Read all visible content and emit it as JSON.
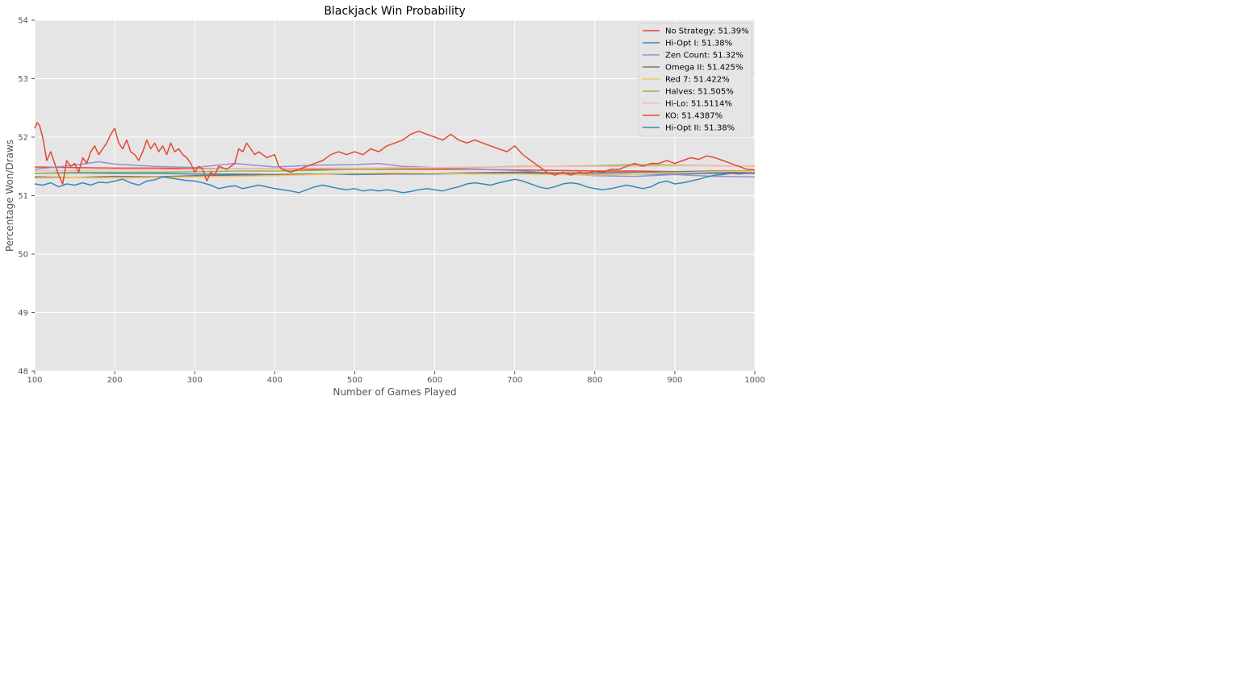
{
  "chart_data": {
    "type": "line",
    "title": "Blackjack Win Probability",
    "xlabel": "Number of Games Played",
    "ylabel": "Percentage Won/Draws",
    "xlim": [
      100,
      1000
    ],
    "ylim": [
      48,
      54
    ],
    "xticks": [
      100,
      200,
      300,
      400,
      500,
      600,
      700,
      800,
      900,
      1000
    ],
    "yticks": [
      48,
      49,
      50,
      51,
      52,
      53,
      54
    ],
    "grid": true,
    "legend_position": "top-right",
    "series": [
      {
        "name": "No Strategy: 51.39%",
        "color": "#e24a33",
        "x": [
          100,
          150,
          200,
          250,
          300,
          350,
          400,
          450,
          500,
          550,
          600,
          650,
          700,
          750,
          800,
          850,
          900,
          950,
          1000
        ],
        "values": [
          51.49,
          51.48,
          51.47,
          51.47,
          51.46,
          51.46,
          51.46,
          51.45,
          51.45,
          51.45,
          51.45,
          51.45,
          51.44,
          51.43,
          51.42,
          51.42,
          51.41,
          51.4,
          51.39
        ]
      },
      {
        "name": "Hi-Opt I: 51.38%",
        "color": "#348abd",
        "x": [
          100,
          150,
          200,
          250,
          300,
          350,
          400,
          450,
          500,
          550,
          600,
          650,
          700,
          750,
          800,
          850,
          900,
          950,
          1000
        ],
        "values": [
          51.38,
          51.39,
          51.38,
          51.38,
          51.37,
          51.37,
          51.36,
          51.37,
          51.36,
          51.37,
          51.37,
          51.38,
          51.38,
          51.37,
          51.36,
          51.37,
          51.37,
          51.38,
          51.38
        ]
      },
      {
        "name": "Zen Count: 51.32%",
        "color": "#988ed5",
        "x": [
          100,
          150,
          180,
          200,
          250,
          300,
          350,
          400,
          450,
          500,
          530,
          560,
          600,
          650,
          700,
          750,
          800,
          850,
          900,
          950,
          1000
        ],
        "values": [
          51.45,
          51.52,
          51.58,
          51.54,
          51.5,
          51.48,
          51.55,
          51.49,
          51.52,
          51.53,
          51.55,
          51.5,
          51.48,
          51.45,
          51.43,
          51.38,
          51.34,
          51.33,
          51.36,
          51.33,
          51.32
        ]
      },
      {
        "name": "Omega II: 51.425%",
        "color": "#777777",
        "x": [
          100,
          150,
          200,
          250,
          300,
          350,
          400,
          450,
          500,
          550,
          600,
          650,
          700,
          750,
          800,
          850,
          900,
          950,
          1000
        ],
        "values": [
          51.32,
          51.31,
          51.33,
          51.32,
          51.34,
          51.35,
          51.36,
          51.37,
          51.38,
          51.37,
          51.38,
          51.39,
          51.4,
          51.39,
          51.39,
          51.4,
          51.41,
          51.42,
          51.425
        ]
      },
      {
        "name": "Red 7: 51.422%",
        "color": "#fbc15e",
        "x": [
          100,
          150,
          200,
          250,
          300,
          350,
          400,
          450,
          500,
          550,
          600,
          650,
          700,
          750,
          800,
          850,
          900,
          950,
          1000
        ],
        "values": [
          51.3,
          51.31,
          51.3,
          51.31,
          51.32,
          51.33,
          51.34,
          51.36,
          51.38,
          51.39,
          51.38,
          51.37,
          51.37,
          51.36,
          51.35,
          51.37,
          51.39,
          51.41,
          51.422
        ]
      },
      {
        "name": "Halves: 51.505%",
        "color": "#8eba42",
        "x": [
          100,
          150,
          200,
          250,
          300,
          350,
          400,
          450,
          500,
          550,
          600,
          650,
          700,
          750,
          800,
          850,
          900,
          950,
          1000
        ],
        "values": [
          51.38,
          51.4,
          51.4,
          51.4,
          51.41,
          51.42,
          51.42,
          51.43,
          51.45,
          51.46,
          51.47,
          51.48,
          51.5,
          51.5,
          51.51,
          51.53,
          51.52,
          51.51,
          51.505
        ]
      },
      {
        "name": "Hi-Lo: 51.5114%",
        "color": "#ffb5b8",
        "x": [
          100,
          150,
          200,
          250,
          300,
          350,
          400,
          450,
          500,
          550,
          600,
          650,
          700,
          750,
          800,
          850,
          900,
          950,
          1000
        ],
        "values": [
          51.42,
          51.43,
          51.44,
          51.44,
          51.45,
          51.46,
          51.46,
          51.47,
          51.47,
          51.48,
          51.48,
          51.49,
          51.49,
          51.5,
          51.5,
          51.5,
          51.51,
          51.51,
          51.5114
        ]
      },
      {
        "name": "KO: 51.4387%",
        "color": "#e24a33",
        "x": [
          100,
          103,
          106,
          110,
          115,
          120,
          125,
          130,
          135,
          140,
          145,
          150,
          155,
          160,
          165,
          170,
          175,
          180,
          185,
          190,
          195,
          200,
          205,
          210,
          215,
          220,
          225,
          230,
          235,
          240,
          245,
          250,
          255,
          260,
          265,
          270,
          275,
          280,
          285,
          290,
          295,
          300,
          305,
          310,
          315,
          320,
          325,
          330,
          340,
          350,
          355,
          360,
          365,
          370,
          375,
          380,
          390,
          400,
          405,
          410,
          420,
          430,
          440,
          450,
          460,
          470,
          480,
          490,
          500,
          510,
          520,
          530,
          540,
          550,
          560,
          570,
          580,
          590,
          600,
          610,
          620,
          630,
          640,
          650,
          660,
          670,
          680,
          690,
          700,
          710,
          720,
          730,
          740,
          750,
          760,
          770,
          780,
          790,
          800,
          810,
          820,
          830,
          840,
          850,
          860,
          870,
          880,
          890,
          900,
          910,
          920,
          930,
          940,
          950,
          960,
          970,
          980,
          990,
          1000
        ],
        "values": [
          52.15,
          52.25,
          52.2,
          52.0,
          51.6,
          51.75,
          51.55,
          51.35,
          51.2,
          51.6,
          51.5,
          51.55,
          51.4,
          51.65,
          51.55,
          51.75,
          51.85,
          51.7,
          51.8,
          51.9,
          52.05,
          52.15,
          51.9,
          51.8,
          51.95,
          51.75,
          51.7,
          51.6,
          51.75,
          51.95,
          51.8,
          51.9,
          51.75,
          51.85,
          51.7,
          51.9,
          51.75,
          51.8,
          51.7,
          51.65,
          51.55,
          51.4,
          51.5,
          51.45,
          51.25,
          51.4,
          51.35,
          51.5,
          51.45,
          51.55,
          51.8,
          51.75,
          51.9,
          51.8,
          51.7,
          51.75,
          51.65,
          51.7,
          51.5,
          51.45,
          51.4,
          51.45,
          51.5,
          51.55,
          51.6,
          51.7,
          51.75,
          51.7,
          51.75,
          51.7,
          51.8,
          51.75,
          51.85,
          51.9,
          51.95,
          52.05,
          52.1,
          52.05,
          52.0,
          51.95,
          52.05,
          51.95,
          51.9,
          51.95,
          51.9,
          51.85,
          51.8,
          51.75,
          51.85,
          51.7,
          51.6,
          51.5,
          51.4,
          51.35,
          51.4,
          51.35,
          51.4,
          51.38,
          51.42,
          51.4,
          51.45,
          51.45,
          51.5,
          51.55,
          51.5,
          51.55,
          51.55,
          51.6,
          51.55,
          51.6,
          51.65,
          51.62,
          51.68,
          51.65,
          51.6,
          51.55,
          51.5,
          51.45,
          51.44
        ]
      },
      {
        "name": "Hi-Opt II: 51.38%",
        "color": "#348abd",
        "x": [
          100,
          110,
          120,
          130,
          140,
          150,
          160,
          170,
          180,
          190,
          200,
          210,
          220,
          230,
          240,
          250,
          260,
          270,
          280,
          290,
          300,
          310,
          320,
          330,
          340,
          350,
          360,
          370,
          380,
          390,
          400,
          410,
          420,
          430,
          440,
          450,
          460,
          470,
          480,
          490,
          500,
          510,
          520,
          530,
          540,
          550,
          560,
          570,
          580,
          590,
          600,
          610,
          620,
          630,
          640,
          650,
          660,
          670,
          680,
          690,
          700,
          710,
          720,
          730,
          740,
          750,
          760,
          770,
          780,
          790,
          800,
          810,
          820,
          830,
          840,
          850,
          860,
          870,
          880,
          890,
          900,
          910,
          920,
          930,
          940,
          950,
          960,
          970,
          980,
          990,
          1000
        ],
        "values": [
          51.2,
          51.18,
          51.22,
          51.15,
          51.2,
          51.18,
          51.22,
          51.18,
          51.23,
          51.22,
          51.25,
          51.28,
          51.22,
          51.18,
          51.25,
          51.27,
          51.32,
          51.3,
          51.28,
          51.26,
          51.25,
          51.22,
          51.18,
          51.12,
          51.15,
          51.17,
          51.12,
          51.15,
          51.18,
          51.15,
          51.12,
          51.1,
          51.08,
          51.05,
          51.1,
          51.15,
          51.18,
          51.15,
          51.12,
          51.1,
          51.12,
          51.08,
          51.1,
          51.08,
          51.1,
          51.08,
          51.05,
          51.07,
          51.1,
          51.12,
          51.1,
          51.08,
          51.12,
          51.15,
          51.2,
          51.22,
          51.2,
          51.18,
          51.22,
          51.25,
          51.28,
          51.25,
          51.2,
          51.15,
          51.12,
          51.15,
          51.2,
          51.22,
          51.2,
          51.15,
          51.12,
          51.1,
          51.12,
          51.15,
          51.18,
          51.15,
          51.12,
          51.15,
          51.22,
          51.25,
          51.2,
          51.22,
          51.25,
          51.28,
          51.32,
          51.35,
          51.36,
          51.38,
          51.37,
          51.38,
          51.38
        ]
      }
    ]
  }
}
